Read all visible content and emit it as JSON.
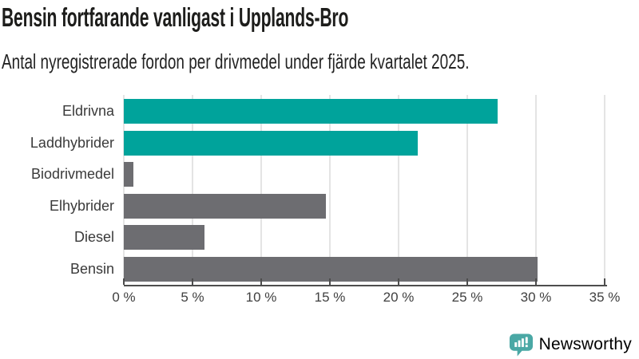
{
  "title": "Bensin fortfarande vanligast i Upplands-Bro",
  "subtitle": "Antal nyregistrerade fordon per drivmedel under fjärde kvartalet 2025.",
  "chart_data": {
    "type": "bar",
    "orientation": "horizontal",
    "title": "Bensin fortfarande vanligast i Upplands-Bro",
    "subtitle": "Antal nyregistrerade fordon per drivmedel under fjärde kvartalet 2025.",
    "categories": [
      "Eldrivna",
      "Laddhybrider",
      "Biodrivmedel",
      "Elhybrider",
      "Diesel",
      "Bensin"
    ],
    "values": [
      27.2,
      21.4,
      0.7,
      14.7,
      5.9,
      30.1
    ],
    "unit": "%",
    "xlim": [
      0,
      35
    ],
    "x_tick_labels": [
      "0 %",
      "5 %",
      "10 %",
      "15 %",
      "20 %",
      "25 %",
      "30 %",
      "35 %"
    ],
    "grid": true,
    "legend": "none",
    "bar_colors": [
      "#00a39b",
      "#00a39b",
      "#6d6d71",
      "#6d6d71",
      "#6d6d71",
      "#6d6d71"
    ],
    "colors": {
      "highlight": "#00a39b",
      "default": "#6d6d71",
      "gridline": "#e4e4e4",
      "axis": "#4d4d4d"
    }
  },
  "branding": {
    "name": "Newsworthy",
    "text_color": "#3ba19e",
    "icon_color": "#4aa8a5",
    "icon": "newsworthy-speech-bubble-chart-icon"
  }
}
